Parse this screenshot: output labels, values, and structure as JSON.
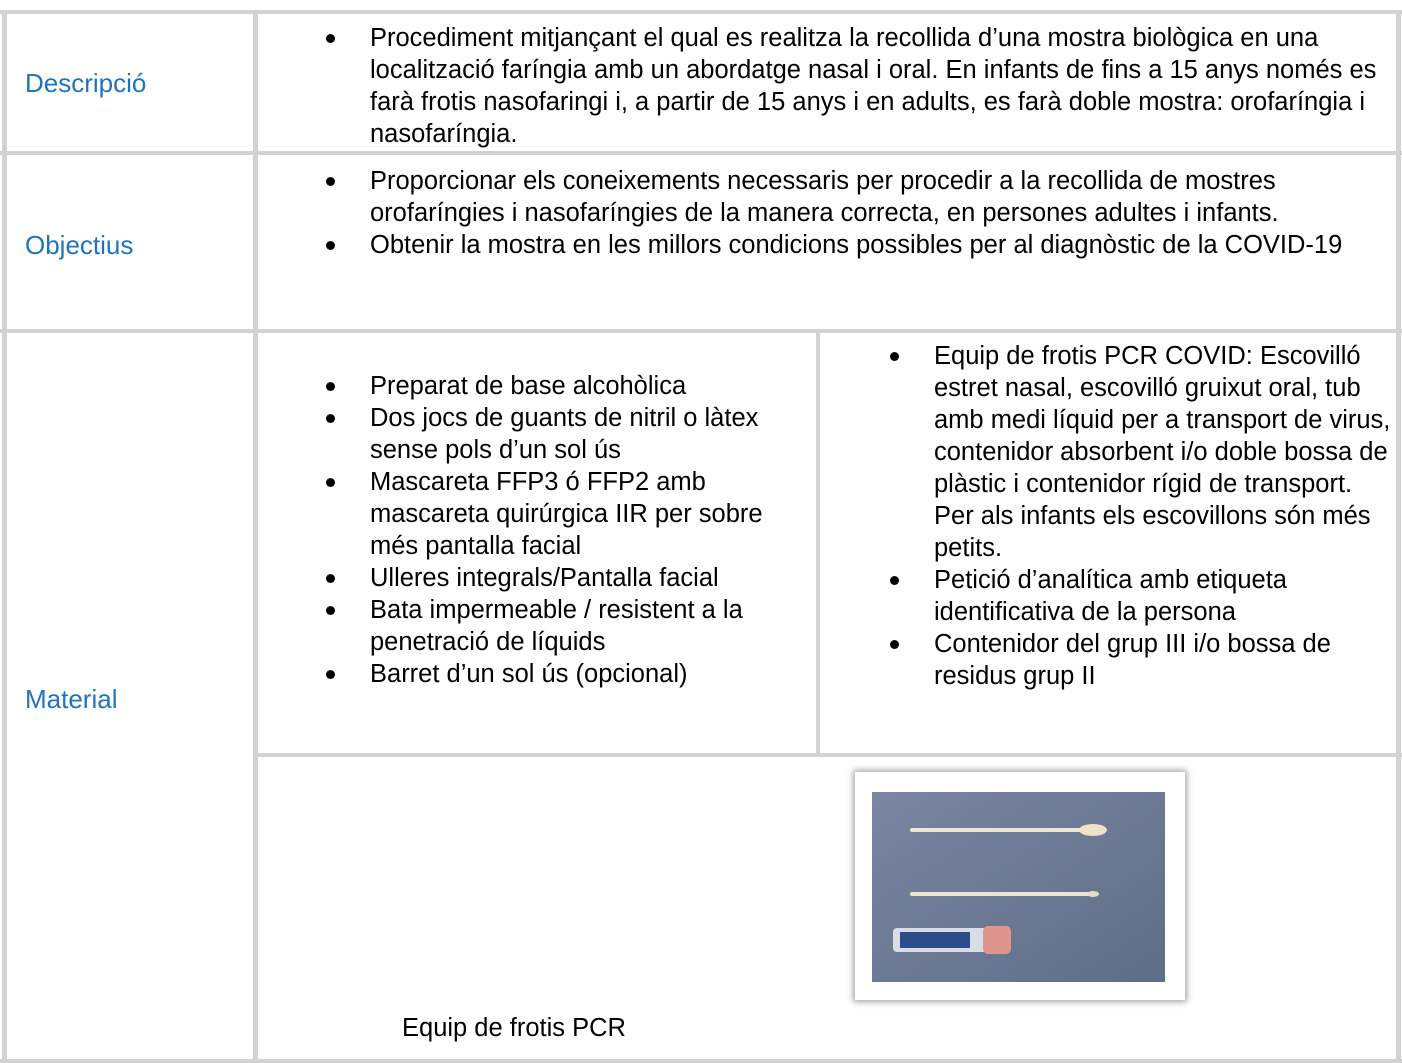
{
  "table": {
    "rows": [
      {
        "label": "Descripció",
        "items": [
          "Procediment mitjançant el qual es realitza la recollida d’una mostra biològica en una localització faríngia amb un abordatge nasal i oral. En infants de fins a 15 anys només es farà frotis nasofaringi i, a partir de 15 anys i en adults, es farà doble mostra: orofaríngia i nasofaríngia."
        ]
      },
      {
        "label": "Objectius",
        "items": [
          "Proporcionar els coneixements necessaris per procedir a la recollida de mostres orofaríngies i nasofaríngies de la manera correcta, en persones adultes i infants.",
          "Obtenir la mostra en les millors condicions possibles per al diagnòstic de la COVID-19"
        ]
      },
      {
        "label": "Material",
        "left_items": [
          "Preparat de base alcohòlica",
          "Dos jocs de guants de nitril o làtex sense pols d’un sol ús",
          "Mascareta FFP3 ó FFP2 amb mascareta quirúrgica IIR per sobre més pantalla facial",
          "Ulleres integrals/Pantalla facial",
          "Bata impermeable / resistent a la penetració de líquids",
          "Barret d’un sol ús (opcional)"
        ],
        "right_items": [
          "Equip de frotis PCR COVID: Escovilló estret nasal, escovilló gruixut oral, tub amb medi líquid per a transport de virus, contenidor absorbent i/o doble bossa de plàstic i contenidor rígid de transport. Per als infants els escovillons són més petits.",
          "Petició d’analítica amb etiqueta identificativa de la persona",
          "Contenidor del grup III i/o bossa de residus grup II"
        ],
        "caption": "Equip de frotis PCR"
      }
    ]
  }
}
